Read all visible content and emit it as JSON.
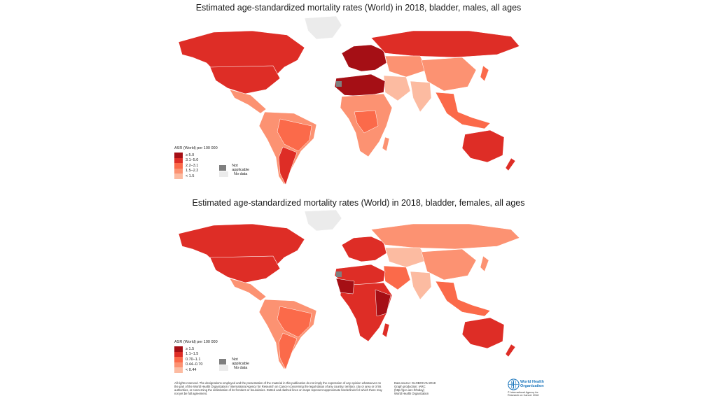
{
  "maps": [
    {
      "title": "Estimated age-standardized mortality rates (World) in 2018, bladder, males, all ages",
      "legend_title": "ASR (World) per 100 000",
      "classes": [
        {
          "label": "≥ 5.0",
          "color": "#a50f15"
        },
        {
          "label": "3.1–5.0",
          "color": "#de2d26"
        },
        {
          "label": "2.2–3.1",
          "color": "#fb6a4a"
        },
        {
          "label": "1.5–2.2",
          "color": "#fc9272"
        },
        {
          "label": "< 1.5",
          "color": "#fcbba1"
        }
      ],
      "not_applicable": {
        "label": "Not applicable",
        "color": "#7f7f7f"
      },
      "no_data": {
        "label": "No data",
        "color": "#ebebeb"
      }
    },
    {
      "title": "Estimated age-standardized mortality rates (World) in 2018, bladder, females, all ages",
      "legend_title": "ASR (World) per 100 000",
      "classes": [
        {
          "label": "≥ 1.5",
          "color": "#a50f15"
        },
        {
          "label": "1.1–1.5",
          "color": "#de2d26"
        },
        {
          "label": "0.70–1.1",
          "color": "#fb6a4a"
        },
        {
          "label": "0.44–0.70",
          "color": "#fc9272"
        },
        {
          "label": "< 0.44",
          "color": "#fcbba1"
        }
      ],
      "not_applicable": {
        "label": "Not applicable",
        "color": "#7f7f7f"
      },
      "no_data": {
        "label": "No data",
        "color": "#ebebeb"
      }
    }
  ],
  "footer": {
    "disclaimer": "All rights reserved. The designations employed and the presentation of the material in this publication do not imply the expression of any opinion whatsoever on the part of the World Health Organization / International Agency for Research on Cancer concerning the legal status of any country, territory, city or area or of its authorities, or concerning the delimitation of its frontiers or boundaries. Dotted and dashed lines on maps represent approximate borderlines for which there may not yet be full agreement.",
    "source_lines": [
      "Data source: GLOBOCAN 2018",
      "Graph production: IARC",
      "(http://gco.iarc.fr/today)",
      "World Health Organization"
    ],
    "who_name": [
      "World Health",
      "Organization"
    ],
    "copyright": [
      "© International Agency for",
      "Research on Cancer 2018"
    ]
  }
}
